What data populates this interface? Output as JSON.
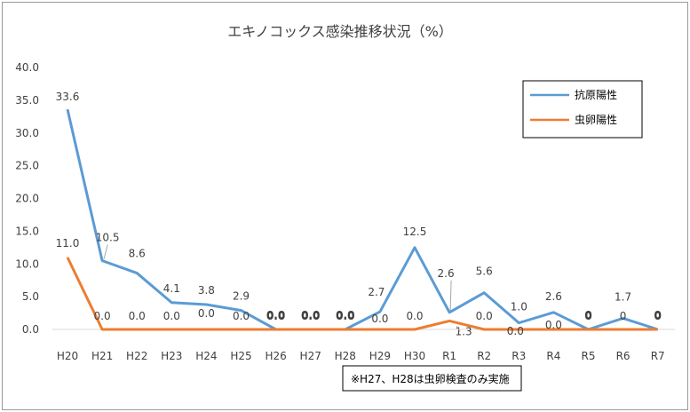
{
  "chart_data": {
    "type": "line",
    "title": "エキノコックス感染推移状況（%）",
    "categories": [
      "H20",
      "H21",
      "H22",
      "H23",
      "H24",
      "H25",
      "H26",
      "H27",
      "H28",
      "H29",
      "H30",
      "R1",
      "R2",
      "R3",
      "R4",
      "R5",
      "R6",
      "R7"
    ],
    "ylim": [
      0,
      40
    ],
    "yticks": [
      "0.0",
      "5.0",
      "10.0",
      "15.0",
      "20.0",
      "25.0",
      "30.0",
      "35.0",
      "40.0"
    ],
    "grid": false,
    "legend_position": "top-right",
    "series": [
      {
        "name": "抗原陽性",
        "color": "#5b9bd5",
        "values": [
          33.6,
          10.5,
          8.6,
          4.1,
          3.8,
          2.9,
          0.0,
          0.0,
          0.0,
          2.7,
          12.5,
          2.6,
          5.6,
          1.0,
          2.6,
          0,
          1.7,
          0
        ],
        "labels": [
          "33.6",
          "10.5",
          "8.6",
          "4.1",
          "3.8",
          "2.9",
          "0.0",
          "0.0",
          "0.0",
          "2.7",
          "12.5",
          "2.6",
          "5.6",
          "1.0",
          "2.6",
          "0",
          "1.7",
          "0"
        ]
      },
      {
        "name": "虫卵陽性",
        "color": "#ed7d31",
        "values": [
          11.0,
          0.0,
          0.0,
          0.0,
          0.0,
          0.0,
          0.0,
          0.0,
          0.0,
          0.0,
          0.0,
          1.3,
          0.0,
          0.0,
          0.0,
          0,
          0,
          0
        ],
        "labels": [
          "11.0",
          "0.0",
          "0.0",
          "0.0",
          "0.0",
          "0.0",
          "0.0",
          "0.0",
          "0.0",
          "0.0",
          "0.0",
          "1.3",
          "0.0",
          "0.0",
          "0.0",
          "0",
          "0",
          "0"
        ]
      }
    ],
    "note": "※H27、H28は虫卵検査のみ実施"
  }
}
